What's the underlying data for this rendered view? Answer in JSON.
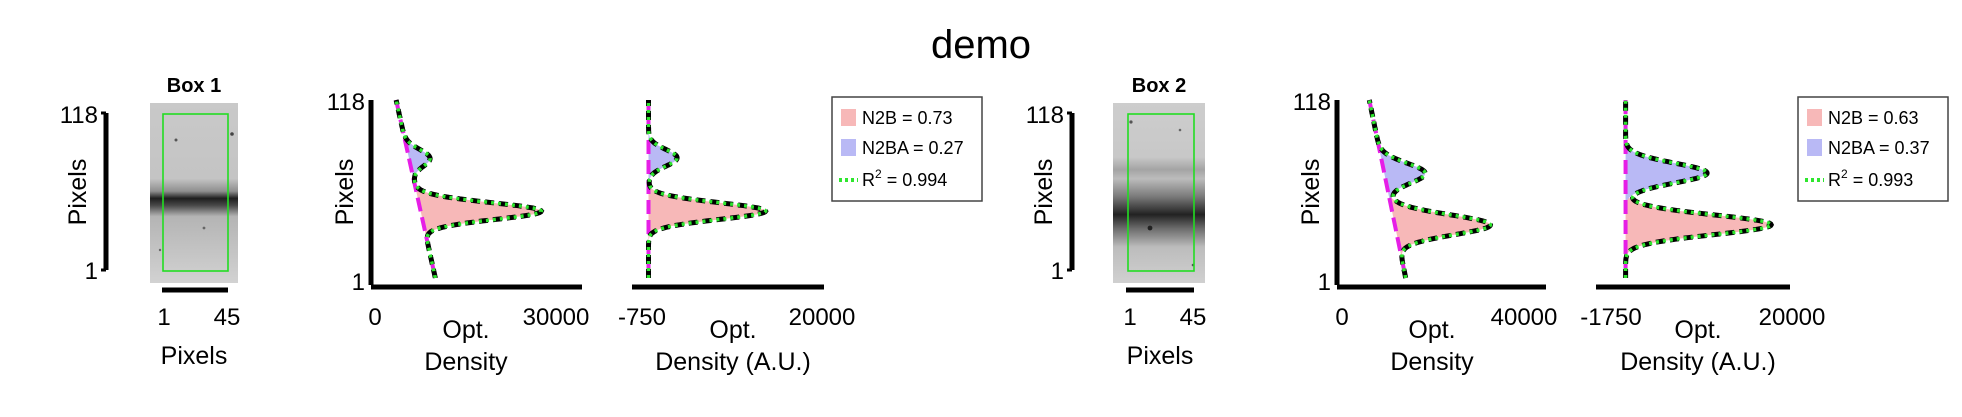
{
  "title": "demo",
  "colors": {
    "n2b": "#f7b8b8",
    "n2ba": "#b9b9f5",
    "fit": "#2ee62e",
    "baseline": "#e61ee6",
    "roi": "#22dd22"
  },
  "panels": [
    {
      "box_title": "Box 1",
      "image": {
        "xlabel": "Pixels",
        "ylabel": "Pixels",
        "xticks": [
          "1",
          "45"
        ],
        "yticks": [
          "118",
          "1"
        ]
      },
      "profile": {
        "xlabel_line1": "Opt.",
        "xlabel_line2": "Density",
        "ylabel": "Pixels",
        "xticks": [
          "0",
          "30000"
        ],
        "yticks": [
          "118",
          "1"
        ]
      },
      "fit": {
        "xlabel_line1": "Opt.",
        "xlabel_line2": "Density (A.U.)",
        "xticks": [
          "-750",
          "20000"
        ]
      },
      "legend": {
        "n2b": "N2B = 0.73",
        "n2ba": "N2BA = 0.27",
        "r2_prefix": "R",
        "r2_sup": "2",
        "r2_value": " = 0.994"
      }
    },
    {
      "box_title": "Box 2",
      "image": {
        "xlabel": "Pixels",
        "ylabel": "Pixels",
        "xticks": [
          "1",
          "45"
        ],
        "yticks": [
          "118",
          "1"
        ]
      },
      "profile": {
        "xlabel_line1": "Opt.",
        "xlabel_line2": "Density",
        "ylabel": "Pixels",
        "xticks": [
          "0",
          "40000"
        ],
        "yticks": [
          "118",
          "1"
        ]
      },
      "fit": {
        "xlabel_line1": "Opt.",
        "xlabel_line2": "Density (A.U.)",
        "xticks": [
          "-1750",
          "20000"
        ]
      },
      "legend": {
        "n2b": "N2B = 0.63",
        "n2ba": "N2BA = 0.37",
        "r2_prefix": "R",
        "r2_sup": "2",
        "r2_value": " = 0.993"
      }
    }
  ],
  "chart_data": [
    {
      "type": "line",
      "name": "box1-profile",
      "xlim": [
        0,
        30000
      ],
      "ylim": [
        1,
        118
      ],
      "baseline": {
        "y_top": 118,
        "x_top": 3500,
        "y_bottom": 1,
        "x_bottom": 10000
      },
      "peaks": [
        {
          "label": "N2BA",
          "center": 80,
          "sigma": 5.5,
          "amplitude": 3500
        },
        {
          "label": "N2B",
          "center": 45,
          "sigma": 5.5,
          "amplitude": 20000
        }
      ]
    },
    {
      "type": "line",
      "name": "box1-fit",
      "xlim": [
        -750,
        20000
      ],
      "ylim": [
        1,
        118
      ],
      "peaks": [
        {
          "label": "N2BA",
          "center": 80,
          "sigma": 5.5,
          "amplitude": 3300
        },
        {
          "label": "N2B",
          "center": 45,
          "sigma": 5.5,
          "amplitude": 13500
        }
      ]
    },
    {
      "type": "line",
      "name": "box2-profile",
      "xlim": [
        0,
        40000
      ],
      "ylim": [
        1,
        118
      ],
      "baseline": {
        "y_top": 118,
        "x_top": 6000,
        "y_bottom": 1,
        "x_bottom": 14000
      },
      "peaks": [
        {
          "label": "N2BA",
          "center": 70,
          "sigma": 6.5,
          "amplitude": 9000
        },
        {
          "label": "N2B",
          "center": 36,
          "sigma": 6.5,
          "amplitude": 21000
        }
      ]
    },
    {
      "type": "line",
      "name": "box2-fit",
      "xlim": [
        -1750,
        20000
      ],
      "ylim": [
        1,
        118
      ],
      "peaks": [
        {
          "label": "N2BA",
          "center": 70,
          "sigma": 6.5,
          "amplitude": 9800
        },
        {
          "label": "N2B",
          "center": 36,
          "sigma": 6.5,
          "amplitude": 17500
        }
      ]
    }
  ]
}
